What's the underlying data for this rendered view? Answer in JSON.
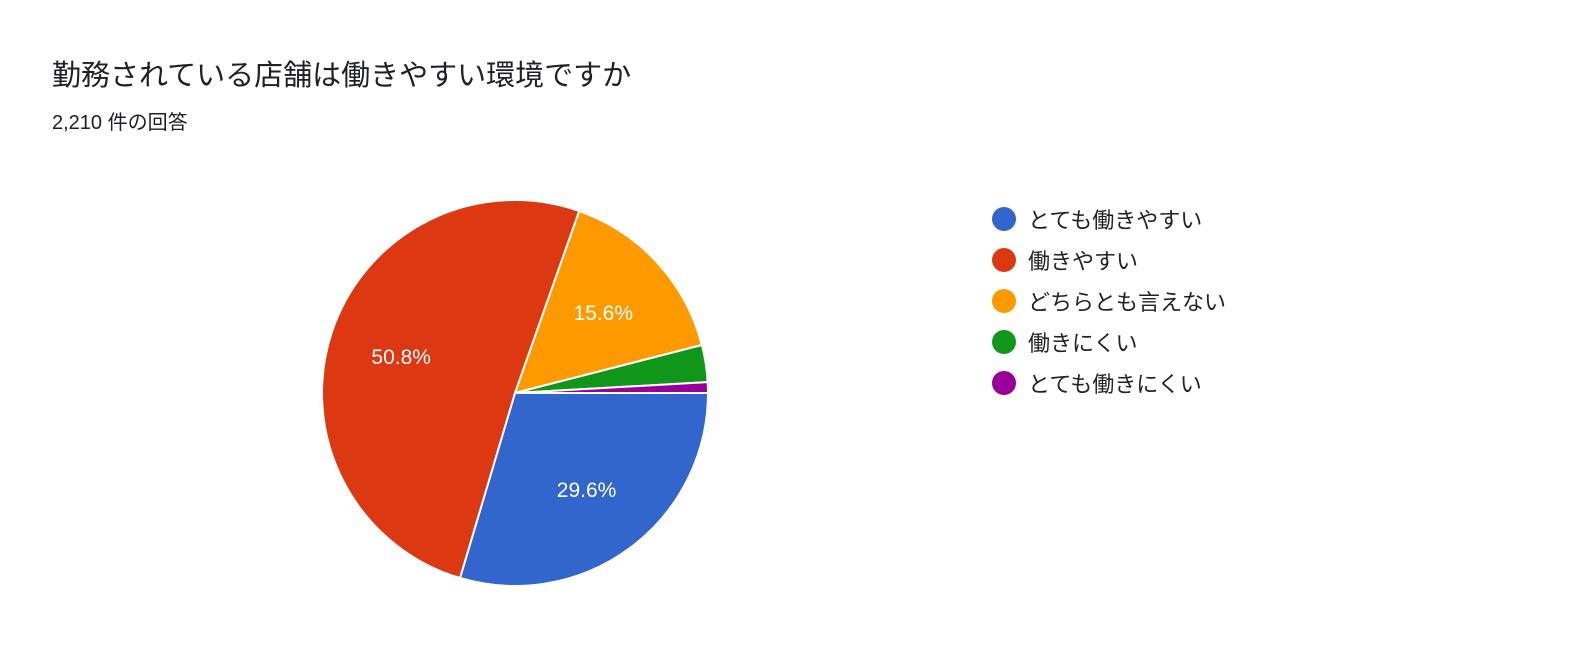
{
  "title": "勤務されている店舗は働きやすい環境ですか",
  "subtitle": "2,210 件の回答",
  "chart_data": {
    "type": "pie",
    "categories": [
      "とても働きやすい",
      "働きやすい",
      "どちらとも言えない",
      "働きにくい",
      "とても働きにくい"
    ],
    "values": [
      29.6,
      50.8,
      15.6,
      3.1,
      0.9
    ],
    "labels": [
      "29.6%",
      "50.8%",
      "15.6%",
      "",
      ""
    ],
    "colors": [
      "#3366cc",
      "#dc3912",
      "#ff9900",
      "#109618",
      "#990099"
    ],
    "legend_position": "right"
  }
}
